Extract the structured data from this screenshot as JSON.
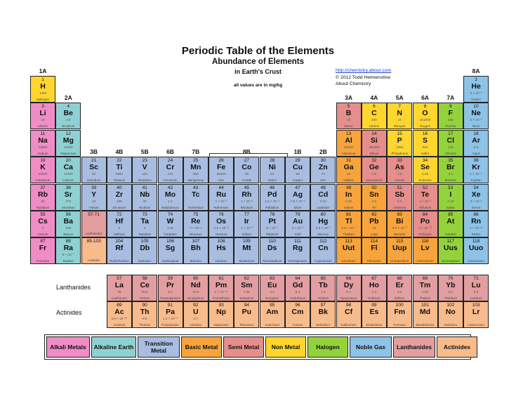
{
  "title": "Periodic Table of the Elements",
  "subtitle": "Abundance of Elements",
  "subtitle2": "in Earth's Crust",
  "note": "all values are in mg/kg",
  "credits": {
    "url": "http://chemistry.about.com",
    "copyright": "© 2012 Todd Helmenstine",
    "org": "About Chemistry"
  },
  "colors": {
    "alkali": "#f08cc6",
    "alkaline": "#8fd1d3",
    "transition": "#a8bde0",
    "basic": "#f7a43d",
    "semi": "#e58e8c",
    "nonmetal": "#ffd62e",
    "halogen": "#94d23c",
    "noble": "#8ec3e8",
    "lanthanide": "#e29ea0",
    "actinide": "#f8bb8c"
  },
  "group_labels": [
    {
      "text": "1A",
      "col": 1,
      "row": 0
    },
    {
      "text": "2A",
      "col": 2,
      "row": 1
    },
    {
      "text": "3B",
      "col": 3,
      "row": 3
    },
    {
      "text": "4B",
      "col": 4,
      "row": 3
    },
    {
      "text": "5B",
      "col": 5,
      "row": 3
    },
    {
      "text": "6B",
      "col": 6,
      "row": 3
    },
    {
      "text": "7B",
      "col": 7,
      "row": 3
    },
    {
      "text": "8B",
      "col": 9,
      "row": 3
    },
    {
      "text": "1B",
      "col": 11,
      "row": 3
    },
    {
      "text": "2B",
      "col": 12,
      "row": 3
    },
    {
      "text": "3A",
      "col": 13,
      "row": 1
    },
    {
      "text": "4A",
      "col": 14,
      "row": 1
    },
    {
      "text": "5A",
      "col": 15,
      "row": 1
    },
    {
      "text": "6A",
      "col": 16,
      "row": 1
    },
    {
      "text": "7A",
      "col": 17,
      "row": 1
    },
    {
      "text": "8A",
      "col": 18,
      "row": 0
    }
  ],
  "row_labels": {
    "lanthanides": "Lanthanides",
    "actinides": "Actinides"
  },
  "elements": [
    {
      "n": "1",
      "s": "H",
      "a": "1400",
      "nm": "Hydrogen",
      "c": 1,
      "r": 1,
      "t": "nonmetal"
    },
    {
      "n": "2",
      "s": "He",
      "a": "8 × 10⁻³",
      "nm": "Helium",
      "c": 18,
      "r": 1,
      "t": "noble"
    },
    {
      "n": "3",
      "s": "Li",
      "a": "20",
      "nm": "Lithium",
      "c": 1,
      "r": 2,
      "t": "alkali"
    },
    {
      "n": "4",
      "s": "Be",
      "a": "2.8",
      "nm": "Beryllium",
      "c": 2,
      "r": 2,
      "t": "alkaline"
    },
    {
      "n": "5",
      "s": "B",
      "a": "10",
      "nm": "Boron",
      "c": 13,
      "r": 2,
      "t": "semi"
    },
    {
      "n": "6",
      "s": "C",
      "a": "200",
      "nm": "Carbon",
      "c": 14,
      "r": 2,
      "t": "nonmetal"
    },
    {
      "n": "7",
      "s": "N",
      "a": "19",
      "nm": "Nitrogen",
      "c": 15,
      "r": 2,
      "t": "nonmetal"
    },
    {
      "n": "8",
      "s": "O",
      "a": "461000",
      "nm": "Oxygen",
      "c": 16,
      "r": 2,
      "t": "nonmetal"
    },
    {
      "n": "9",
      "s": "F",
      "a": "585",
      "nm": "Fluorine",
      "c": 17,
      "r": 2,
      "t": "halogen"
    },
    {
      "n": "10",
      "s": "Ne",
      "a": "5 × 10⁻³",
      "nm": "Neon",
      "c": 18,
      "r": 2,
      "t": "noble"
    },
    {
      "n": "11",
      "s": "Na",
      "a": "23600",
      "nm": "Sodium",
      "c": 1,
      "r": 3,
      "t": "alkali"
    },
    {
      "n": "12",
      "s": "Mg",
      "a": "23300",
      "nm": "Magnesium",
      "c": 2,
      "r": 3,
      "t": "alkaline"
    },
    {
      "n": "13",
      "s": "Al",
      "a": "82300",
      "nm": "Aluminum",
      "c": 13,
      "r": 3,
      "t": "basic"
    },
    {
      "n": "14",
      "s": "Si",
      "a": "282000",
      "nm": "Silicon",
      "c": 14,
      "r": 3,
      "t": "semi"
    },
    {
      "n": "15",
      "s": "P",
      "a": "1050",
      "nm": "Phosphorus",
      "c": 15,
      "r": 3,
      "t": "nonmetal"
    },
    {
      "n": "16",
      "s": "S",
      "a": "350",
      "nm": "Sulfur",
      "c": 16,
      "r": 3,
      "t": "nonmetal"
    },
    {
      "n": "17",
      "s": "Cl",
      "a": "145",
      "nm": "Chlorine",
      "c": 17,
      "r": 3,
      "t": "halogen"
    },
    {
      "n": "18",
      "s": "Ar",
      "a": "3.5",
      "nm": "Argon",
      "c": 18,
      "r": 3,
      "t": "noble"
    },
    {
      "n": "19",
      "s": "K",
      "a": "20900",
      "nm": "Potassium",
      "c": 1,
      "r": 4,
      "t": "alkali"
    },
    {
      "n": "20",
      "s": "Ca",
      "a": "41500",
      "nm": "Calcium",
      "c": 2,
      "r": 4,
      "t": "alkaline"
    },
    {
      "n": "21",
      "s": "Sc",
      "a": "22",
      "nm": "Scandium",
      "c": 3,
      "r": 4,
      "t": "transition"
    },
    {
      "n": "22",
      "s": "Ti",
      "a": "5650",
      "nm": "Titanium",
      "c": 4,
      "r": 4,
      "t": "transition"
    },
    {
      "n": "23",
      "s": "V",
      "a": "120",
      "nm": "Vanadium",
      "c": 5,
      "r": 4,
      "t": "transition"
    },
    {
      "n": "24",
      "s": "Cr",
      "a": "102",
      "nm": "Chromium",
      "c": 6,
      "r": 4,
      "t": "transition"
    },
    {
      "n": "25",
      "s": "Mn",
      "a": "950",
      "nm": "Manganese",
      "c": 7,
      "r": 4,
      "t": "transition"
    },
    {
      "n": "26",
      "s": "Fe",
      "a": "56300",
      "nm": "Iron",
      "c": 8,
      "r": 4,
      "t": "transition"
    },
    {
      "n": "27",
      "s": "Co",
      "a": "25",
      "nm": "Cobalt",
      "c": 9,
      "r": 4,
      "t": "transition"
    },
    {
      "n": "28",
      "s": "Ni",
      "a": "84",
      "nm": "Nickel",
      "c": 10,
      "r": 4,
      "t": "transition"
    },
    {
      "n": "29",
      "s": "Cu",
      "a": "60",
      "nm": "Copper",
      "c": 11,
      "r": 4,
      "t": "transition"
    },
    {
      "n": "30",
      "s": "Zn",
      "a": "70",
      "nm": "Zinc",
      "c": 12,
      "r": 4,
      "t": "transition"
    },
    {
      "n": "31",
      "s": "Ga",
      "a": "19",
      "nm": "Gallium",
      "c": 13,
      "r": 4,
      "t": "basic"
    },
    {
      "n": "32",
      "s": "Ge",
      "a": "1.5",
      "nm": "Germanium",
      "c": 14,
      "r": 4,
      "t": "semi"
    },
    {
      "n": "33",
      "s": "As",
      "a": "1.8",
      "nm": "Arsenic",
      "c": 15,
      "r": 4,
      "t": "semi"
    },
    {
      "n": "34",
      "s": "Se",
      "a": "0.05",
      "nm": "Selenium",
      "c": 16,
      "r": 4,
      "t": "nonmetal"
    },
    {
      "n": "35",
      "s": "Br",
      "a": "2.4",
      "nm": "Bromine",
      "c": 17,
      "r": 4,
      "t": "halogen"
    },
    {
      "n": "36",
      "s": "Kr",
      "a": "1 × 10⁻⁴",
      "nm": "Krypton",
      "c": 18,
      "r": 4,
      "t": "noble"
    },
    {
      "n": "37",
      "s": "Rb",
      "a": "90",
      "nm": "Rubidium",
      "c": 1,
      "r": 5,
      "t": "alkali"
    },
    {
      "n": "38",
      "s": "Sr",
      "a": "370",
      "nm": "Strontium",
      "c": 2,
      "r": 5,
      "t": "alkaline"
    },
    {
      "n": "39",
      "s": "Y",
      "a": "33",
      "nm": "Yttrium",
      "c": 3,
      "r": 5,
      "t": "transition"
    },
    {
      "n": "40",
      "s": "Zr",
      "a": "165",
      "nm": "Zirconium",
      "c": 4,
      "r": 5,
      "t": "transition"
    },
    {
      "n": "41",
      "s": "Nb",
      "a": "20",
      "nm": "Niobium",
      "c": 5,
      "r": 5,
      "t": "transition"
    },
    {
      "n": "42",
      "s": "Mo",
      "a": "1.2",
      "nm": "Molybdenum",
      "c": 6,
      "r": 5,
      "t": "transition"
    },
    {
      "n": "43",
      "s": "Tc",
      "a": "",
      "nm": "Technetium",
      "c": 7,
      "r": 5,
      "t": "transition"
    },
    {
      "n": "44",
      "s": "Ru",
      "a": "1 × 10⁻³",
      "nm": "Ruthenium",
      "c": 8,
      "r": 5,
      "t": "transition"
    },
    {
      "n": "45",
      "s": "Rh",
      "a": "1 × 10⁻³",
      "nm": "Rhodium",
      "c": 9,
      "r": 5,
      "t": "transition"
    },
    {
      "n": "46",
      "s": "Pd",
      "a": "1.5 × 10⁻²",
      "nm": "Palladium",
      "c": 10,
      "r": 5,
      "t": "transition"
    },
    {
      "n": "47",
      "s": "Ag",
      "a": "7.5 × 10⁻²",
      "nm": "Silver",
      "c": 11,
      "r": 5,
      "t": "transition"
    },
    {
      "n": "48",
      "s": "Cd",
      "a": "0.15",
      "nm": "Cadmium",
      "c": 12,
      "r": 5,
      "t": "transition"
    },
    {
      "n": "49",
      "s": "In",
      "a": "0.25",
      "nm": "Indium",
      "c": 13,
      "r": 5,
      "t": "basic"
    },
    {
      "n": "50",
      "s": "Sn",
      "a": "2.3",
      "nm": "Tin",
      "c": 14,
      "r": 5,
      "t": "basic"
    },
    {
      "n": "51",
      "s": "Sb",
      "a": "0.2",
      "nm": "Antimony",
      "c": 15,
      "r": 5,
      "t": "semi"
    },
    {
      "n": "52",
      "s": "Te",
      "a": "1 × 10⁻³",
      "nm": "Tellurium",
      "c": 16,
      "r": 5,
      "t": "semi"
    },
    {
      "n": "53",
      "s": "I",
      "a": "0.45",
      "nm": "Iodine",
      "c": 17,
      "r": 5,
      "t": "halogen"
    },
    {
      "n": "54",
      "s": "Xe",
      "a": "3 × 10⁻⁵",
      "nm": "Xenon",
      "c": 18,
      "r": 5,
      "t": "noble"
    },
    {
      "n": "55",
      "s": "Cs",
      "a": "3",
      "nm": "Cesium",
      "c": 1,
      "r": 6,
      "t": "alkali"
    },
    {
      "n": "56",
      "s": "Ba",
      "a": "425",
      "nm": "Barium",
      "c": 2,
      "r": 6,
      "t": "alkaline"
    },
    {
      "n": "57-71",
      "s": "",
      "a": "",
      "nm": "Lanthanides",
      "c": 3,
      "r": 6,
      "t": "lanthanide"
    },
    {
      "n": "72",
      "s": "Hf",
      "a": "3",
      "nm": "Hafnium",
      "c": 4,
      "r": 6,
      "t": "transition"
    },
    {
      "n": "73",
      "s": "Ta",
      "a": "2",
      "nm": "Tantalum",
      "c": 5,
      "r": 6,
      "t": "transition"
    },
    {
      "n": "74",
      "s": "W",
      "a": "1.25",
      "nm": "Tungsten",
      "c": 6,
      "r": 6,
      "t": "transition"
    },
    {
      "n": "75",
      "s": "Re",
      "a": "7 × 10⁻⁴",
      "nm": "Rhenium",
      "c": 7,
      "r": 6,
      "t": "transition"
    },
    {
      "n": "76",
      "s": "Os",
      "a": "1.5 × 10⁻³",
      "nm": "Osmium",
      "c": 8,
      "r": 6,
      "t": "transition"
    },
    {
      "n": "77",
      "s": "Ir",
      "a": "1 × 10⁻³",
      "nm": "Iridium",
      "c": 9,
      "r": 6,
      "t": "transition"
    },
    {
      "n": "78",
      "s": "Pt",
      "a": "5 × 10⁻³",
      "nm": "Platinum",
      "c": 10,
      "r": 6,
      "t": "transition"
    },
    {
      "n": "79",
      "s": "Au",
      "a": "4 × 10⁻³",
      "nm": "Gold",
      "c": 11,
      "r": 6,
      "t": "transition"
    },
    {
      "n": "80",
      "s": "Hg",
      "a": "8.5 × 10⁻²",
      "nm": "Mercury",
      "c": 12,
      "r": 6,
      "t": "transition"
    },
    {
      "n": "81",
      "s": "Tl",
      "a": "8.5 × 10⁻¹",
      "nm": "Thallium",
      "c": 13,
      "r": 6,
      "t": "basic"
    },
    {
      "n": "82",
      "s": "Pb",
      "a": "14",
      "nm": "Lead",
      "c": 14,
      "r": 6,
      "t": "basic"
    },
    {
      "n": "83",
      "s": "Bi",
      "a": "8.5 × 10⁻³",
      "nm": "Bismuth",
      "c": 15,
      "r": 6,
      "t": "basic"
    },
    {
      "n": "84",
      "s": "Po",
      "a": "2 × 10⁻¹⁰",
      "nm": "Polonium",
      "c": 16,
      "r": 6,
      "t": "semi"
    },
    {
      "n": "85",
      "s": "At",
      "a": "",
      "nm": "Astatine",
      "c": 17,
      "r": 6,
      "t": "halogen"
    },
    {
      "n": "86",
      "s": "Rn",
      "a": "4 × 10⁻¹³",
      "nm": "Radon",
      "c": 18,
      "r": 6,
      "t": "noble"
    },
    {
      "n": "87",
      "s": "Fr",
      "a": "",
      "nm": "Francium",
      "c": 1,
      "r": 7,
      "t": "alkali"
    },
    {
      "n": "88",
      "s": "Ra",
      "a": "9 × 10⁻⁷",
      "nm": "Radium",
      "c": 2,
      "r": 7,
      "t": "alkaline"
    },
    {
      "n": "89-103",
      "s": "",
      "a": "",
      "nm": "Actinides",
      "c": 3,
      "r": 7,
      "t": "actinide"
    },
    {
      "n": "104",
      "s": "Rf",
      "a": "",
      "nm": "Rutherfordium",
      "c": 4,
      "r": 7,
      "t": "transition"
    },
    {
      "n": "105",
      "s": "Db",
      "a": "",
      "nm": "Dubnium",
      "c": 5,
      "r": 7,
      "t": "transition"
    },
    {
      "n": "106",
      "s": "Sg",
      "a": "",
      "nm": "Seaborgium",
      "c": 6,
      "r": 7,
      "t": "transition"
    },
    {
      "n": "107",
      "s": "Bh",
      "a": "",
      "nm": "Bohrium",
      "c": 7,
      "r": 7,
      "t": "transition"
    },
    {
      "n": "108",
      "s": "Hs",
      "a": "",
      "nm": "Hassium",
      "c": 8,
      "r": 7,
      "t": "transition"
    },
    {
      "n": "109",
      "s": "Mt",
      "a": "",
      "nm": "Meitnerium",
      "c": 9,
      "r": 7,
      "t": "transition"
    },
    {
      "n": "110",
      "s": "Ds",
      "a": "",
      "nm": "Darmstadtium",
      "c": 10,
      "r": 7,
      "t": "transition"
    },
    {
      "n": "111",
      "s": "Rg",
      "a": "",
      "nm": "Roentgenium",
      "c": 11,
      "r": 7,
      "t": "transition"
    },
    {
      "n": "112",
      "s": "Cn",
      "a": "",
      "nm": "Copernicium",
      "c": 12,
      "r": 7,
      "t": "transition"
    },
    {
      "n": "113",
      "s": "Uut",
      "a": "",
      "nm": "Ununtrium",
      "c": 13,
      "r": 7,
      "t": "basic"
    },
    {
      "n": "114",
      "s": "Fl",
      "a": "",
      "nm": "Flerovium",
      "c": 14,
      "r": 7,
      "t": "basic"
    },
    {
      "n": "115",
      "s": "Uup",
      "a": "",
      "nm": "Ununpentium",
      "c": 15,
      "r": 7,
      "t": "basic"
    },
    {
      "n": "116",
      "s": "Lv",
      "a": "",
      "nm": "Livermorium",
      "c": 16,
      "r": 7,
      "t": "basic"
    },
    {
      "n": "117",
      "s": "Uus",
      "a": "",
      "nm": "Ununseptium",
      "c": 17,
      "r": 7,
      "t": "halogen"
    },
    {
      "n": "118",
      "s": "Uuo",
      "a": "",
      "nm": "Ununoctium",
      "c": 18,
      "r": 7,
      "t": "noble"
    }
  ],
  "lanthanides": [
    {
      "n": "57",
      "s": "La",
      "a": "39",
      "nm": "Lanthanum"
    },
    {
      "n": "58",
      "s": "Ce",
      "a": "66.5",
      "nm": "Cerium"
    },
    {
      "n": "59",
      "s": "Pr",
      "a": "9.2",
      "nm": "Praseodymium"
    },
    {
      "n": "60",
      "s": "Nd",
      "a": "41.5",
      "nm": "Neodymium"
    },
    {
      "n": "61",
      "s": "Pm",
      "a": "2 × 10⁻¹⁹",
      "nm": "Promethium"
    },
    {
      "n": "62",
      "s": "Sm",
      "a": "7.05",
      "nm": "Samarium"
    },
    {
      "n": "63",
      "s": "Eu",
      "a": "2.0",
      "nm": "Europium"
    },
    {
      "n": "64",
      "s": "Gd",
      "a": "6.2",
      "nm": "Gadolinium"
    },
    {
      "n": "65",
      "s": "Tb",
      "a": "1.2",
      "nm": "Terbium"
    },
    {
      "n": "66",
      "s": "Dy",
      "a": "5.2",
      "nm": "Dysprosium"
    },
    {
      "n": "67",
      "s": "Ho",
      "a": "1.3",
      "nm": "Holmium"
    },
    {
      "n": "68",
      "s": "Er",
      "a": "3.5",
      "nm": "Erbium"
    },
    {
      "n": "69",
      "s": "Tm",
      "a": "0.52",
      "nm": "Thulium"
    },
    {
      "n": "70",
      "s": "Yb",
      "a": "3.2",
      "nm": "Ytterbium"
    },
    {
      "n": "71",
      "s": "Lu",
      "a": "0.8",
      "nm": "Lutetium"
    }
  ],
  "actinides": [
    {
      "n": "89",
      "s": "Ac",
      "a": "5.5 × 10⁻¹⁰",
      "nm": "Actinium"
    },
    {
      "n": "90",
      "s": "Th",
      "a": "9.6",
      "nm": "Thorium"
    },
    {
      "n": "91",
      "s": "Pa",
      "a": "1.4 × 10⁻⁶",
      "nm": "Protactinium"
    },
    {
      "n": "92",
      "s": "U",
      "a": "2.7",
      "nm": "Uranium"
    },
    {
      "n": "93",
      "s": "Np",
      "a": "",
      "nm": "Neptunium"
    },
    {
      "n": "94",
      "s": "Pu",
      "a": "",
      "nm": "Plutonium"
    },
    {
      "n": "95",
      "s": "Am",
      "a": "",
      "nm": "Americium"
    },
    {
      "n": "96",
      "s": "Cm",
      "a": "",
      "nm": "Curium"
    },
    {
      "n": "97",
      "s": "Bk",
      "a": "",
      "nm": "Berkelium"
    },
    {
      "n": "98",
      "s": "Cf",
      "a": "",
      "nm": "Californium"
    },
    {
      "n": "99",
      "s": "Es",
      "a": "",
      "nm": "Einsteinium"
    },
    {
      "n": "100",
      "s": "Fm",
      "a": "",
      "nm": "Fermium"
    },
    {
      "n": "101",
      "s": "Md",
      "a": "",
      "nm": "Mendelevium"
    },
    {
      "n": "102",
      "s": "No",
      "a": "",
      "nm": "Nobelium"
    },
    {
      "n": "103",
      "s": "Lr",
      "a": "",
      "nm": "Lawrencium"
    }
  ],
  "legend": [
    {
      "label": "Alkali Metals",
      "t": "alkali"
    },
    {
      "label": "Alkaline Earth",
      "t": "alkaline"
    },
    {
      "label": "Transition Metal",
      "t": "transition"
    },
    {
      "label": "Basic Metal",
      "t": "basic"
    },
    {
      "label": "Semi Metal",
      "t": "semi"
    },
    {
      "label": "Non Metal",
      "t": "nonmetal"
    },
    {
      "label": "Halogen",
      "t": "halogen"
    },
    {
      "label": "Noble Gas",
      "t": "noble"
    },
    {
      "label": "Lanthanides",
      "t": "lanthanide"
    },
    {
      "label": "Actinides",
      "t": "actinide"
    }
  ]
}
